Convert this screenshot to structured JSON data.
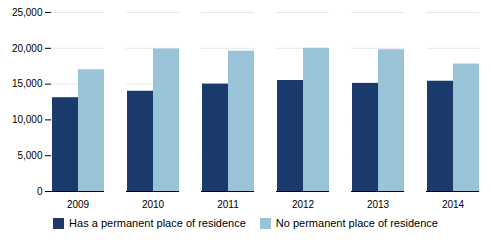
{
  "chart_data": {
    "type": "bar",
    "categories": [
      "2009",
      "2010",
      "2011",
      "2012",
      "2013",
      "2014"
    ],
    "series": [
      {
        "name": "Has a permanent place of residence",
        "color": "#1a3a6b",
        "values": [
          13100,
          14000,
          15000,
          15500,
          15100,
          15400
        ]
      },
      {
        "name": "No permanent place of residence",
        "color": "#99c4d8",
        "values": [
          17000,
          19900,
          19600,
          20000,
          19800,
          17800
        ]
      }
    ],
    "ylim": [
      0,
      25000
    ],
    "yticks": [
      0,
      {
        "value": 5000,
        "label": "5,000"
      },
      {
        "value": 10000,
        "label": "10,000"
      },
      {
        "value": 15000,
        "label": "15,000"
      },
      {
        "value": 20000,
        "label": "20,000"
      },
      {
        "value": 25000,
        "label": "25,000"
      }
    ],
    "grid": true,
    "legend": "bottom"
  }
}
